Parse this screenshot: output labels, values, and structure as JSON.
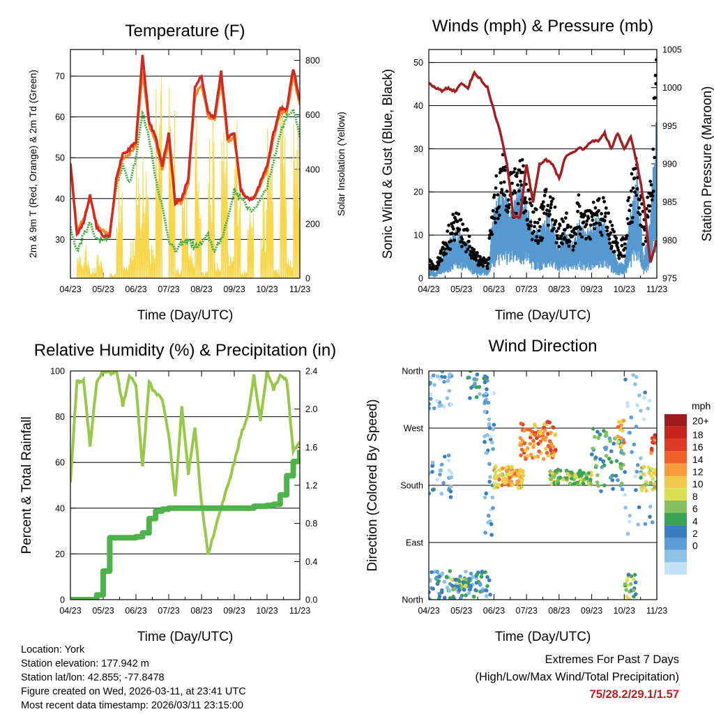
{
  "colors": {
    "temp_red": "#d22a22",
    "temp_orange": "#f08a2a",
    "dewpoint_green": "#3fae3f",
    "solar_yellow": "#f7d64a",
    "wind_blue": "#5599d0",
    "gust_black": "#000000",
    "pressure_maroon": "#a11f22",
    "rh_lightgreen": "#98c84a",
    "precip_green": "#4db34a",
    "extremes_red": "#b22222"
  },
  "months": [
    "04/23",
    "05/23",
    "06/23",
    "07/23",
    "08/23",
    "09/23",
    "10/23",
    "11/23"
  ],
  "chart_data": [
    {
      "type": "line",
      "title": "Temperature (F)",
      "xlabel": "Time (Day/UTC)",
      "ylabel": "2m & 9m T (Red, Orange) & 2m Td (Green)",
      "y2label": "Solar Insolation (Yellow)",
      "ylim": [
        20.5,
        76.5
      ],
      "yticks": [
        30,
        40,
        50,
        60,
        70
      ],
      "y2lim": [
        0,
        840
      ],
      "y2ticks": [
        0,
        200,
        400,
        600,
        800
      ],
      "x": [
        0,
        0.2,
        0.4,
        0.6,
        0.8,
        1,
        1.2,
        1.4,
        1.6,
        1.8,
        2,
        2.2,
        2.4,
        2.6,
        2.8,
        3,
        3.2,
        3.4,
        3.6,
        3.8,
        4,
        4.2,
        4.4,
        4.6,
        4.8,
        5,
        5.2,
        5.4,
        5.6,
        5.8,
        6,
        6.2,
        6.4,
        6.6,
        6.8,
        7
      ],
      "series": [
        {
          "name": "2m T",
          "color": "#d22a22",
          "values": [
            49,
            31,
            34,
            41,
            33,
            31,
            31,
            45,
            51,
            52,
            54,
            75,
            59,
            55,
            48,
            56,
            39,
            40,
            45,
            67,
            70,
            61,
            60,
            71,
            55,
            56,
            42,
            40,
            40,
            44,
            48,
            56,
            62,
            62,
            72,
            64
          ]
        },
        {
          "name": "9m T",
          "color": "#f08a2a",
          "values": [
            48,
            32,
            35,
            40,
            34,
            32,
            31.5,
            44,
            50,
            51,
            53,
            71,
            58,
            54,
            47,
            54,
            39,
            39,
            44,
            65,
            68,
            60,
            59,
            69,
            54,
            55,
            42,
            40,
            40,
            43,
            47,
            55,
            61,
            61,
            70,
            63
          ]
        },
        {
          "name": "2m Td",
          "color": "#3fae3f",
          "values": [
            33,
            27,
            31,
            34,
            30,
            30,
            31,
            43,
            48,
            44,
            50,
            61,
            55,
            45,
            38,
            30,
            27,
            29,
            30,
            28,
            29,
            31,
            27,
            30,
            35,
            42,
            40,
            38,
            37,
            40,
            43,
            49,
            56,
            60,
            62,
            55
          ]
        },
        {
          "name": "Solar Insolation",
          "axis": "right",
          "color": "#f7d64a",
          "values": [
            0,
            90,
            120,
            40,
            90,
            0,
            20,
            400,
            60,
            200,
            500,
            650,
            150,
            750,
            0,
            820,
            50,
            420,
            100,
            600,
            30,
            650,
            60,
            580,
            100,
            650,
            30,
            500,
            0,
            300,
            600,
            40,
            700,
            80,
            600,
            0
          ]
        }
      ]
    },
    {
      "type": "line",
      "title": "Winds (mph) & Pressure (mb)",
      "xlabel": "Time (Day/UTC)",
      "ylabel": "Sonic Wind & Gust (Blue, Black)",
      "y2label": "Station Pressure (Maroon)",
      "ylim": [
        0,
        53
      ],
      "yticks": [
        0,
        10,
        20,
        30,
        40,
        50
      ],
      "y2lim": [
        975,
        1005
      ],
      "y2ticks": [
        975,
        980,
        985,
        990,
        995,
        1000,
        1005
      ],
      "x": [
        0,
        0.2,
        0.4,
        0.6,
        0.8,
        1,
        1.2,
        1.4,
        1.6,
        1.8,
        2,
        2.2,
        2.4,
        2.6,
        2.8,
        3,
        3.2,
        3.4,
        3.6,
        3.8,
        4,
        4.2,
        4.4,
        4.6,
        4.8,
        5,
        5.2,
        5.4,
        5.6,
        5.8,
        6,
        6.2,
        6.4,
        6.6,
        6.8,
        7
      ],
      "series": [
        {
          "name": "Sonic Wind",
          "color": "#5599d0",
          "values": [
            2,
            1,
            4,
            6,
            9,
            8,
            6,
            3,
            3,
            2,
            12,
            15,
            14,
            13,
            16,
            14,
            9,
            8,
            12,
            10,
            6,
            9,
            6,
            10,
            8,
            9,
            11,
            10,
            6,
            3,
            3,
            12,
            18,
            4,
            10,
            30
          ]
        },
        {
          "name": "Gust",
          "color": "#000000",
          "values": [
            4,
            3,
            7,
            11,
            15,
            13,
            10,
            6,
            5,
            4,
            20,
            25,
            28,
            22,
            30,
            22,
            15,
            14,
            20,
            18,
            12,
            15,
            10,
            18,
            14,
            16,
            18,
            17,
            12,
            8,
            9,
            22,
            28,
            12,
            22,
            50
          ]
        },
        {
          "name": "Station Pressure",
          "axis": "right",
          "color": "#a11f22",
          "values": [
            1000.5,
            1000,
            999.6,
            1000,
            999.5,
            1000.5,
            1000,
            1002,
            1001,
            1000,
            997,
            994,
            990,
            983,
            983,
            990,
            985,
            990,
            990.5,
            990,
            988,
            991,
            991.5,
            992,
            992,
            993,
            993,
            994,
            992,
            994,
            992,
            993.5,
            990,
            985,
            977,
            980
          ]
        }
      ]
    },
    {
      "type": "line",
      "title": "Relative Humidity (%) & Precipitation (in)",
      "xlabel": "Time (Day/UTC)",
      "ylabel": "Percent & Total Rainfall",
      "ylim": [
        0,
        100
      ],
      "yticks": [
        0,
        20,
        40,
        60,
        80,
        100
      ],
      "y2lim": [
        0,
        2.4
      ],
      "y2ticks": [
        0.0,
        0.4,
        0.8,
        1.2,
        1.6,
        2.0,
        2.4
      ],
      "x": [
        0,
        0.2,
        0.4,
        0.6,
        0.8,
        1,
        1.2,
        1.4,
        1.6,
        1.8,
        2,
        2.2,
        2.4,
        2.6,
        2.8,
        3,
        3.2,
        3.4,
        3.6,
        3.8,
        4,
        4.2,
        4.4,
        4.6,
        4.8,
        5,
        5.2,
        5.4,
        5.6,
        5.8,
        6,
        6.2,
        6.4,
        6.6,
        6.8,
        7
      ],
      "series": [
        {
          "name": "Relative Humidity",
          "color": "#98c84a",
          "values": [
            52,
            95,
            96,
            67,
            95,
            100,
            99,
            100,
            85,
            98,
            94,
            58,
            95,
            90,
            88,
            72,
            45,
            84,
            55,
            75,
            42,
            20,
            30,
            40,
            50,
            60,
            72,
            80,
            98,
            78,
            100,
            92,
            98,
            96,
            65,
            69
          ]
        },
        {
          "name": "Total Precipitation",
          "axis": "right",
          "color": "#4db34a",
          "values": [
            0,
            0,
            0,
            0,
            0.05,
            0.3,
            0.65,
            0.65,
            0.65,
            0.65,
            0.66,
            0.7,
            0.85,
            0.93,
            0.95,
            0.96,
            0.96,
            0.96,
            0.96,
            0.96,
            0.96,
            0.96,
            0.96,
            0.96,
            0.96,
            0.96,
            0.96,
            0.96,
            0.98,
            0.98,
            0.99,
            1.0,
            1.1,
            1.3,
            1.45,
            1.57
          ]
        }
      ]
    },
    {
      "type": "scatter",
      "title": "Wind Direction",
      "xlabel": "Time (Day/UTC)",
      "ylabel": "Direction (Colored By Speed)",
      "ylim": [
        0,
        360
      ],
      "yticks": [
        0,
        90,
        180,
        270,
        360
      ],
      "ytick_labels": [
        "North",
        "East",
        "South",
        "West",
        "North"
      ],
      "legend_title": "mph",
      "legend_labels": [
        "20+",
        "18",
        "16",
        "14",
        "12",
        "10",
        "8",
        "6",
        "4",
        "2",
        "0"
      ],
      "legend_colors": [
        "#a01c1c",
        "#c8241e",
        "#e03a26",
        "#f0622a",
        "#f99a3c",
        "#f0c84c",
        "#dce050",
        "#82c060",
        "#3aa358",
        "#3a7ec0",
        "#5a9cd4",
        "#8fc0e6",
        "#c4e2f6"
      ],
      "speed_scale": [
        0,
        2,
        4,
        6,
        8,
        10,
        12,
        14,
        16,
        18,
        20
      ],
      "clusters": [
        {
          "x0": 0.0,
          "x1": 0.7,
          "dir_lo": 300,
          "dir_hi": 360,
          "speed": 2,
          "n": 30
        },
        {
          "x0": 0.0,
          "x1": 0.7,
          "dir_lo": 160,
          "dir_hi": 230,
          "speed": 3,
          "n": 28
        },
        {
          "x0": 0.0,
          "x1": 1.9,
          "dir_lo": 0,
          "dir_hi": 45,
          "speed": 4,
          "n": 90
        },
        {
          "x0": 0.7,
          "x1": 1.3,
          "dir_lo": 15,
          "dir_hi": 35,
          "speed": 7,
          "n": 30
        },
        {
          "x0": 1.2,
          "x1": 1.8,
          "dir_lo": 310,
          "dir_hi": 360,
          "speed": 5,
          "n": 25
        },
        {
          "x0": 1.7,
          "x1": 2.0,
          "dir_lo": 100,
          "dir_hi": 330,
          "speed": 3,
          "n": 40
        },
        {
          "x0": 2.0,
          "x1": 2.9,
          "dir_lo": 175,
          "dir_hi": 210,
          "speed": 12,
          "n": 80
        },
        {
          "x0": 2.8,
          "x1": 3.9,
          "dir_lo": 220,
          "dir_hi": 280,
          "speed": 14,
          "n": 90
        },
        {
          "x0": 3.7,
          "x1": 5.0,
          "dir_lo": 180,
          "dir_hi": 205,
          "speed": 9,
          "n": 80
        },
        {
          "x0": 5.0,
          "x1": 6.0,
          "dir_lo": 170,
          "dir_hi": 270,
          "speed": 6,
          "n": 60
        },
        {
          "x0": 5.8,
          "x1": 6.0,
          "dir_lo": 240,
          "dir_hi": 285,
          "speed": 12,
          "n": 14
        },
        {
          "x0": 6.0,
          "x1": 6.4,
          "dir_lo": 0,
          "dir_hi": 40,
          "speed": 8,
          "n": 22
        },
        {
          "x0": 6.0,
          "x1": 6.9,
          "dir_lo": 100,
          "dir_hi": 360,
          "speed": 2,
          "n": 40
        },
        {
          "x0": 6.5,
          "x1": 7.0,
          "dir_lo": 170,
          "dir_hi": 210,
          "speed": 10,
          "n": 30
        },
        {
          "x0": 6.8,
          "x1": 7.0,
          "dir_lo": 230,
          "dir_hi": 260,
          "speed": 16,
          "n": 12
        }
      ]
    }
  ],
  "info": {
    "location": "Location: York",
    "elevation": "Station elevation: 177.942 m",
    "latlon": "Station lat/lon: 42.855; -77.8478",
    "created": "Figure created on Wed, 2026-03-11, at 23:41 UTC",
    "recent": "Most recent data timestamp: 2026/03/11 23:15:00"
  },
  "extremes": {
    "line1": "Extremes For Past 7 Days",
    "line2": "(High/Low/Max Wind/Total Precipitation)",
    "value": "75/28.2/29.1/1.57"
  }
}
